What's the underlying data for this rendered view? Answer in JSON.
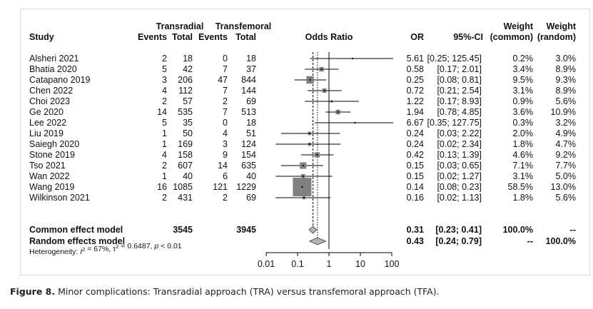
{
  "figure": {
    "label": "Figure 8.",
    "caption": "Minor complications: Transradial approach (TRA) versus transfemoral approach (TFA)."
  },
  "header": {
    "group1": "Transradial",
    "group2": "Transfemoral",
    "study": "Study",
    "events": "Events",
    "total": "Total",
    "odds_ratio": "Odds Ratio",
    "or": "OR",
    "ci": "95%-CI",
    "weight": "Weight",
    "common": "(common)",
    "random": "(random)"
  },
  "colors": {
    "square": "#808080",
    "diamond_fill": "#b3b3b3",
    "line": "#000000"
  },
  "chart_data": {
    "type": "forest",
    "xscale": "log",
    "xticks": [
      0.01,
      0.1,
      1,
      10,
      100
    ],
    "xtick_labels": [
      "0.01",
      "0.1",
      "1",
      "10",
      "100"
    ],
    "xlim": [
      0.01,
      100
    ],
    "studies": [
      {
        "name": "Alsheri 2021",
        "e1": "2",
        "n1": "18",
        "e2": "0",
        "n2": "18",
        "or": 5.61,
        "lo": 0.25,
        "hi": 125.45,
        "or_text": "5.61",
        "ci_text": "[0.25; 125.45]",
        "wc": "0.2%",
        "wr": "3.0%",
        "wcn": 0.2
      },
      {
        "name": "Bhatia 2020",
        "e1": "5",
        "n1": "42",
        "e2": "7",
        "n2": "37",
        "or": 0.58,
        "lo": 0.17,
        "hi": 2.01,
        "or_text": "0.58",
        "ci_text": "[0.17;   2.01]",
        "wc": "3.4%",
        "wr": "8.9%",
        "wcn": 3.4
      },
      {
        "name": "Catapano 2019",
        "e1": "3",
        "n1": "206",
        "e2": "47",
        "n2": "844",
        "or": 0.25,
        "lo": 0.08,
        "hi": 0.81,
        "or_text": "0.25",
        "ci_text": "[0.08;   0.81]",
        "wc": "9.5%",
        "wr": "9.3%",
        "wcn": 9.5
      },
      {
        "name": "Chen 2022",
        "e1": "4",
        "n1": "112",
        "e2": "7",
        "n2": "144",
        "or": 0.72,
        "lo": 0.21,
        "hi": 2.54,
        "or_text": "0.72",
        "ci_text": "[0.21;   2.54]",
        "wc": "3.1%",
        "wr": "8.9%",
        "wcn": 3.1
      },
      {
        "name": "Choi 2023",
        "e1": "2",
        "n1": "57",
        "e2": "2",
        "n2": "69",
        "or": 1.22,
        "lo": 0.17,
        "hi": 8.93,
        "or_text": "1.22",
        "ci_text": "[0.17;   8.93]",
        "wc": "0.9%",
        "wr": "5.6%",
        "wcn": 0.9
      },
      {
        "name": "Ge 2020",
        "e1": "14",
        "n1": "535",
        "e2": "7",
        "n2": "513",
        "or": 1.94,
        "lo": 0.78,
        "hi": 4.85,
        "or_text": "1.94",
        "ci_text": "[0.78;   4.85]",
        "wc": "3.6%",
        "wr": "10.9%",
        "wcn": 3.6
      },
      {
        "name": "Lee 2022",
        "e1": "5",
        "n1": "35",
        "e2": "0",
        "n2": "18",
        "or": 6.67,
        "lo": 0.35,
        "hi": 127.75,
        "or_text": "6.67",
        "ci_text": "[0.35; 127.75]",
        "wc": "0.3%",
        "wr": "3.2%",
        "wcn": 0.3
      },
      {
        "name": "Liu 2019",
        "e1": "1",
        "n1": "50",
        "e2": "4",
        "n2": "51",
        "or": 0.24,
        "lo": 0.03,
        "hi": 2.22,
        "or_text": "0.24",
        "ci_text": "[0.03;   2.22]",
        "wc": "2.0%",
        "wr": "4.9%",
        "wcn": 2.0
      },
      {
        "name": "Saiegh 2020",
        "e1": "1",
        "n1": "169",
        "e2": "3",
        "n2": "124",
        "or": 0.24,
        "lo": 0.02,
        "hi": 2.34,
        "or_text": "0.24",
        "ci_text": "[0.02;   2.34]",
        "wc": "1.8%",
        "wr": "4.7%",
        "wcn": 1.8
      },
      {
        "name": "Stone 2019",
        "e1": "4",
        "n1": "158",
        "e2": "9",
        "n2": "154",
        "or": 0.42,
        "lo": 0.13,
        "hi": 1.39,
        "or_text": "0.42",
        "ci_text": "[0.13;   1.39]",
        "wc": "4.6%",
        "wr": "9.2%",
        "wcn": 4.6
      },
      {
        "name": "Tso 2021",
        "e1": "2",
        "n1": "607",
        "e2": "14",
        "n2": "635",
        "or": 0.15,
        "lo": 0.03,
        "hi": 0.65,
        "or_text": "0.15",
        "ci_text": "[0.03;   0.65]",
        "wc": "7.1%",
        "wr": "7.7%",
        "wcn": 7.1
      },
      {
        "name": "Wan 2022",
        "e1": "1",
        "n1": "40",
        "e2": "6",
        "n2": "40",
        "or": 0.15,
        "lo": 0.02,
        "hi": 1.27,
        "or_text": "0.15",
        "ci_text": "[0.02;   1.27]",
        "wc": "3.1%",
        "wr": "5.0%",
        "wcn": 3.1
      },
      {
        "name": "Wang 2019",
        "e1": "16",
        "n1": "1085",
        "e2": "121",
        "n2": "1229",
        "or": 0.14,
        "lo": 0.08,
        "hi": 0.23,
        "or_text": "0.14",
        "ci_text": "[0.08;   0.23]",
        "wc": "58.5%",
        "wr": "13.0%",
        "wcn": 58.5
      },
      {
        "name": "Wilkinson 2021",
        "e1": "2",
        "n1": "431",
        "e2": "2",
        "n2": "69",
        "or": 0.16,
        "lo": 0.02,
        "hi": 1.13,
        "or_text": "0.16",
        "ci_text": "[0.02;   1.13]",
        "wc": "1.8%",
        "wr": "5.6%",
        "wcn": 1.8
      }
    ],
    "summary": [
      {
        "name": "Common effect model",
        "n1": "3545",
        "n2": "3945",
        "or": 0.31,
        "lo": 0.23,
        "hi": 0.41,
        "or_text": "0.31",
        "ci_text": "[0.23;   0.41]",
        "wc": "100.0%",
        "wr": "--"
      },
      {
        "name": "Random effects model",
        "n1": "",
        "n2": "",
        "or": 0.43,
        "lo": 0.24,
        "hi": 0.79,
        "or_text": "0.43",
        "ci_text": "[0.24;   0.79]",
        "wc": "--",
        "wr": "100.0%"
      }
    ],
    "heterogeneity": {
      "prefix": "Heterogeneity: ",
      "i2_sym": "I",
      "i2_val": " = 67%, ",
      "tau_sym": "τ",
      "tau_val": " = 0.6487, ",
      "p_sym": "p",
      "p_val": " < 0.01"
    }
  }
}
